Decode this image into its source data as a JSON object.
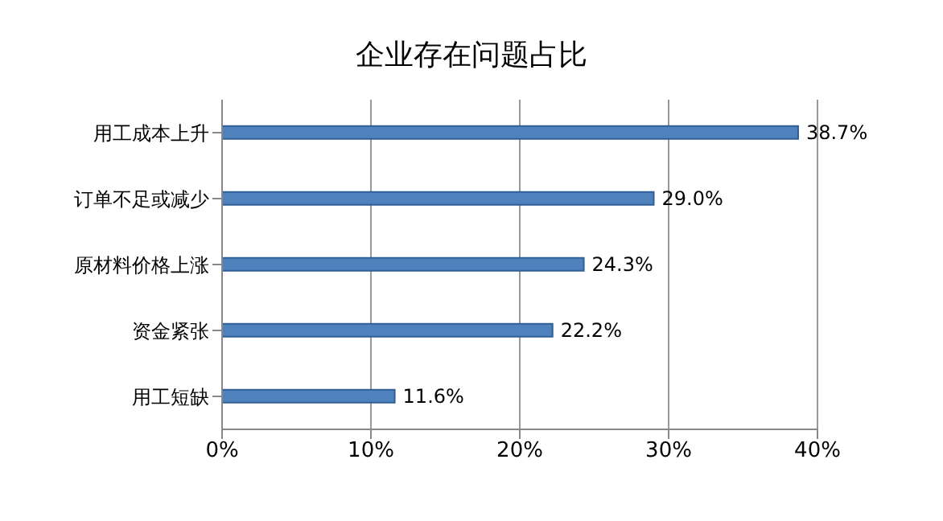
{
  "chart_data": {
    "type": "bar",
    "orientation": "horizontal",
    "title": "企业存在问题占比",
    "categories": [
      "用工成本上升",
      "订单不足或减少",
      "原材料价格上涨",
      "资金紧张",
      "用工短缺"
    ],
    "values": [
      38.7,
      29.0,
      24.3,
      22.2,
      11.6
    ],
    "value_labels": [
      "38.7%",
      "29.0%",
      "24.3%",
      "22.2%",
      "11.6%"
    ],
    "color": "#4f81bd",
    "xlim": [
      0,
      40
    ],
    "xticks": [
      {
        "value": 0,
        "label": "0%"
      },
      {
        "value": 10,
        "label": "10%"
      },
      {
        "value": 20,
        "label": "20%"
      },
      {
        "value": 30,
        "label": "30%"
      },
      {
        "value": 40,
        "label": "40%"
      }
    ],
    "grid": "x",
    "legend": false
  }
}
